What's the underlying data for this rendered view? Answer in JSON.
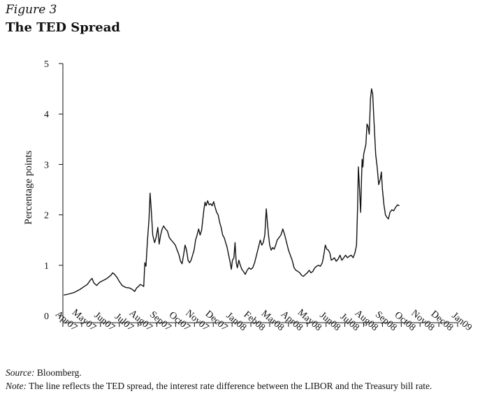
{
  "figure_label": "Figure 3",
  "title": "The TED Spread",
  "source_label": "Source:",
  "source_text": "Bloomberg.",
  "note_label": "Note:",
  "note_text": "The line reflects the TED spread, the interest rate difference between the LIBOR and the Treasury bill rate.",
  "chart_data": {
    "type": "line",
    "title": "The TED Spread",
    "xlabel": "",
    "ylabel": "Percentage points",
    "ylim": [
      0,
      5
    ],
    "yticks": [
      0,
      1,
      2,
      3,
      4,
      5
    ],
    "xlim": [
      0,
      21
    ],
    "xticks": [
      "Apr07",
      "May07",
      "Jun07",
      "Jul07",
      "Aug07",
      "Sep07",
      "Oct07",
      "Nov07",
      "Dec07",
      "Jan08",
      "Feb08",
      "Mar08",
      "Apr08",
      "May08",
      "Jun08",
      "Jul08",
      "Aug08",
      "Sep08",
      "Oct08",
      "Nov08",
      "Dec08",
      "Jan09"
    ],
    "grid": false,
    "line_color": "#111111",
    "series": [
      {
        "values": [
          [
            0.05,
            0.41
          ],
          [
            0.3,
            0.43
          ],
          [
            0.6,
            0.46
          ],
          [
            0.9,
            0.52
          ],
          [
            1.1,
            0.57
          ],
          [
            1.3,
            0.62
          ],
          [
            1.45,
            0.7
          ],
          [
            1.55,
            0.74
          ],
          [
            1.65,
            0.65
          ],
          [
            1.8,
            0.6
          ],
          [
            1.95,
            0.66
          ],
          [
            2.15,
            0.7
          ],
          [
            2.35,
            0.74
          ],
          [
            2.55,
            0.8
          ],
          [
            2.65,
            0.85
          ],
          [
            2.75,
            0.82
          ],
          [
            2.9,
            0.75
          ],
          [
            3.0,
            0.68
          ],
          [
            3.15,
            0.6
          ],
          [
            3.35,
            0.56
          ],
          [
            3.55,
            0.55
          ],
          [
            3.7,
            0.52
          ],
          [
            3.82,
            0.48
          ],
          [
            3.92,
            0.55
          ],
          [
            4.02,
            0.58
          ],
          [
            4.12,
            0.62
          ],
          [
            4.22,
            0.6
          ],
          [
            4.3,
            0.58
          ],
          [
            4.36,
            1.05
          ],
          [
            4.42,
            0.98
          ],
          [
            4.5,
            1.5
          ],
          [
            4.58,
            1.9
          ],
          [
            4.64,
            2.43
          ],
          [
            4.7,
            2.1
          ],
          [
            4.78,
            1.6
          ],
          [
            4.88,
            1.45
          ],
          [
            4.96,
            1.55
          ],
          [
            5.05,
            1.75
          ],
          [
            5.12,
            1.42
          ],
          [
            5.2,
            1.6
          ],
          [
            5.28,
            1.72
          ],
          [
            5.36,
            1.78
          ],
          [
            5.46,
            1.72
          ],
          [
            5.56,
            1.68
          ],
          [
            5.66,
            1.55
          ],
          [
            5.76,
            1.5
          ],
          [
            5.88,
            1.45
          ],
          [
            5.98,
            1.4
          ],
          [
            6.08,
            1.3
          ],
          [
            6.18,
            1.2
          ],
          [
            6.26,
            1.08
          ],
          [
            6.34,
            1.03
          ],
          [
            6.42,
            1.2
          ],
          [
            6.5,
            1.4
          ],
          [
            6.58,
            1.3
          ],
          [
            6.66,
            1.1
          ],
          [
            6.74,
            1.05
          ],
          [
            6.82,
            1.1
          ],
          [
            6.9,
            1.2
          ],
          [
            6.98,
            1.3
          ],
          [
            7.06,
            1.5
          ],
          [
            7.14,
            1.6
          ],
          [
            7.22,
            1.72
          ],
          [
            7.3,
            1.6
          ],
          [
            7.38,
            1.7
          ],
          [
            7.44,
            1.9
          ],
          [
            7.5,
            2.1
          ],
          [
            7.56,
            2.25
          ],
          [
            7.62,
            2.18
          ],
          [
            7.7,
            2.28
          ],
          [
            7.78,
            2.2
          ],
          [
            7.86,
            2.22
          ],
          [
            7.94,
            2.18
          ],
          [
            8.02,
            2.26
          ],
          [
            8.1,
            2.15
          ],
          [
            8.18,
            2.05
          ],
          [
            8.26,
            2.0
          ],
          [
            8.34,
            1.85
          ],
          [
            8.42,
            1.75
          ],
          [
            8.5,
            1.6
          ],
          [
            8.58,
            1.55
          ],
          [
            8.66,
            1.45
          ],
          [
            8.74,
            1.35
          ],
          [
            8.82,
            1.2
          ],
          [
            8.9,
            1.05
          ],
          [
            8.96,
            0.92
          ],
          [
            9.02,
            1.1
          ],
          [
            9.1,
            1.15
          ],
          [
            9.16,
            1.45
          ],
          [
            9.22,
            1.05
          ],
          [
            9.28,
            0.95
          ],
          [
            9.36,
            1.1
          ],
          [
            9.44,
            1.0
          ],
          [
            9.52,
            0.92
          ],
          [
            9.6,
            0.88
          ],
          [
            9.7,
            0.82
          ],
          [
            9.8,
            0.9
          ],
          [
            9.9,
            0.95
          ],
          [
            10.0,
            0.92
          ],
          [
            10.1,
            0.95
          ],
          [
            10.2,
            1.05
          ],
          [
            10.3,
            1.2
          ],
          [
            10.4,
            1.35
          ],
          [
            10.5,
            1.5
          ],
          [
            10.58,
            1.4
          ],
          [
            10.66,
            1.45
          ],
          [
            10.74,
            1.6
          ],
          [
            10.82,
            2.12
          ],
          [
            10.88,
            1.85
          ],
          [
            10.94,
            1.6
          ],
          [
            11.0,
            1.4
          ],
          [
            11.08,
            1.3
          ],
          [
            11.16,
            1.35
          ],
          [
            11.24,
            1.32
          ],
          [
            11.32,
            1.4
          ],
          [
            11.4,
            1.5
          ],
          [
            11.5,
            1.55
          ],
          [
            11.6,
            1.6
          ],
          [
            11.7,
            1.72
          ],
          [
            11.8,
            1.6
          ],
          [
            11.9,
            1.45
          ],
          [
            12.0,
            1.3
          ],
          [
            12.1,
            1.2
          ],
          [
            12.2,
            1.1
          ],
          [
            12.3,
            0.95
          ],
          [
            12.4,
            0.9
          ],
          [
            12.5,
            0.88
          ],
          [
            12.6,
            0.85
          ],
          [
            12.7,
            0.8
          ],
          [
            12.8,
            0.78
          ],
          [
            12.9,
            0.82
          ],
          [
            13.0,
            0.85
          ],
          [
            13.1,
            0.9
          ],
          [
            13.2,
            0.85
          ],
          [
            13.3,
            0.88
          ],
          [
            13.4,
            0.95
          ],
          [
            13.5,
            0.98
          ],
          [
            13.6,
            1.0
          ],
          [
            13.7,
            0.98
          ],
          [
            13.8,
            1.05
          ],
          [
            13.88,
            1.2
          ],
          [
            13.96,
            1.4
          ],
          [
            14.04,
            1.32
          ],
          [
            14.12,
            1.3
          ],
          [
            14.2,
            1.25
          ],
          [
            14.28,
            1.1
          ],
          [
            14.36,
            1.12
          ],
          [
            14.44,
            1.15
          ],
          [
            14.54,
            1.08
          ],
          [
            14.64,
            1.12
          ],
          [
            14.74,
            1.2
          ],
          [
            14.84,
            1.1
          ],
          [
            14.94,
            1.15
          ],
          [
            15.04,
            1.2
          ],
          [
            15.14,
            1.15
          ],
          [
            15.24,
            1.18
          ],
          [
            15.34,
            1.2
          ],
          [
            15.44,
            1.15
          ],
          [
            15.54,
            1.25
          ],
          [
            15.62,
            1.4
          ],
          [
            15.68,
            2.2
          ],
          [
            15.72,
            2.95
          ],
          [
            15.78,
            2.5
          ],
          [
            15.84,
            2.05
          ],
          [
            15.88,
            2.6
          ],
          [
            15.92,
            3.1
          ],
          [
            15.96,
            2.95
          ],
          [
            16.0,
            3.2
          ],
          [
            16.06,
            3.3
          ],
          [
            16.12,
            3.4
          ],
          [
            16.18,
            3.8
          ],
          [
            16.24,
            3.75
          ],
          [
            16.3,
            3.6
          ],
          [
            16.36,
            4.3
          ],
          [
            16.42,
            4.5
          ],
          [
            16.48,
            4.4
          ],
          [
            16.56,
            3.8
          ],
          [
            16.64,
            3.2
          ],
          [
            16.72,
            2.95
          ],
          [
            16.8,
            2.6
          ],
          [
            16.88,
            2.7
          ],
          [
            16.94,
            2.85
          ],
          [
            17.0,
            2.5
          ],
          [
            17.08,
            2.2
          ],
          [
            17.16,
            2.0
          ],
          [
            17.24,
            1.95
          ],
          [
            17.32,
            1.92
          ],
          [
            17.4,
            2.05
          ],
          [
            17.5,
            2.1
          ],
          [
            17.6,
            2.08
          ],
          [
            17.7,
            2.15
          ],
          [
            17.8,
            2.2
          ],
          [
            17.9,
            2.18
          ]
        ]
      }
    ]
  }
}
